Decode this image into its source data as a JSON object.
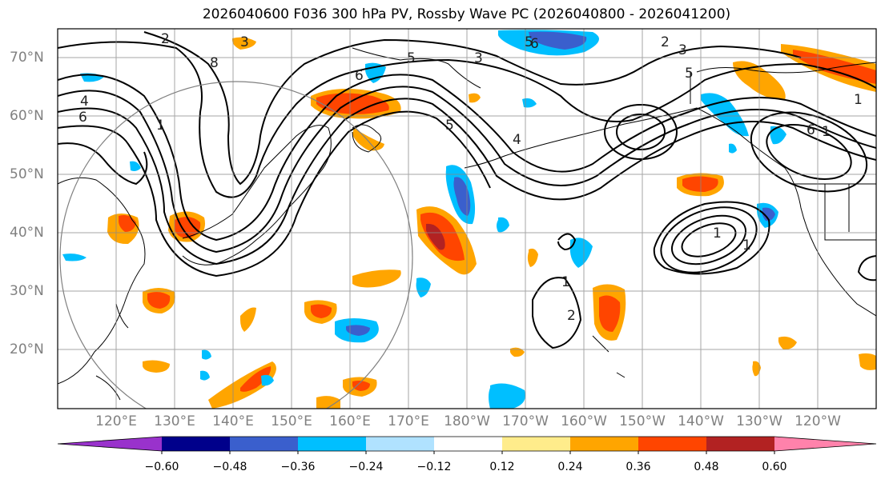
{
  "title": "2026040600 F036 300 hPa PV, Rossby Wave PC (2026040800 - 2026041200)",
  "lat_labels": [
    "70°N",
    "60°N",
    "50°N",
    "40°N",
    "30°N",
    "20°N"
  ],
  "lon_labels": [
    "120°E",
    "130°E",
    "140°E",
    "150°E",
    "160°E",
    "170°E",
    "180°W",
    "170°W",
    "160°W",
    "150°W",
    "140°W",
    "130°W",
    "120°W"
  ],
  "colorbar": {
    "ticks": [
      "−0.60",
      "−0.48",
      "−0.36",
      "−0.24",
      "−0.12",
      "0.12",
      "0.24",
      "0.36",
      "0.48",
      "0.60"
    ],
    "colors": [
      "#9932cc",
      "#00008b",
      "#3a5fcd",
      "#00bfff",
      "#b0e2ff",
      "#ffffff",
      "#ffec8b",
      "#ffa500",
      "#ff4500",
      "#b22222",
      "#ff82ab"
    ]
  },
  "contour_labels": [
    "2",
    "8",
    "3",
    "3",
    "5",
    "6",
    "2",
    "3",
    "5",
    "1",
    "4",
    "6",
    "1",
    "4",
    "5",
    "6",
    "5",
    "6",
    "1",
    "2",
    "1",
    "1",
    "1"
  ]
}
